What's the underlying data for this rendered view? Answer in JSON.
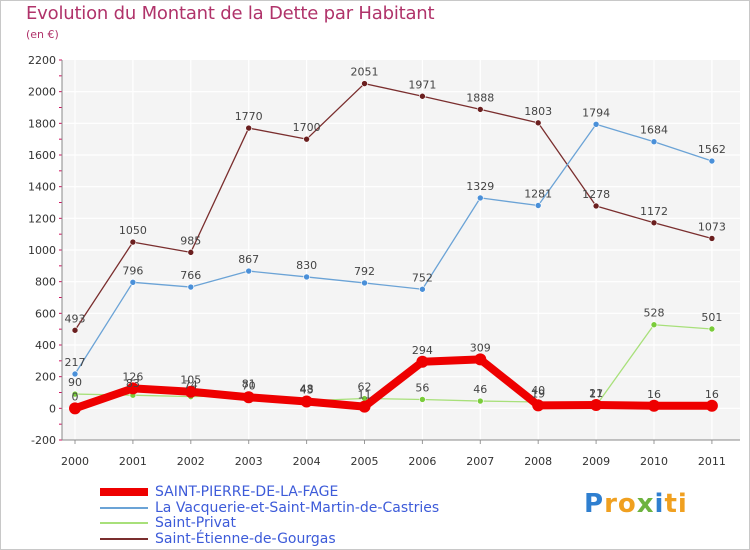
{
  "chart_data": {
    "type": "line",
    "title": "Evolution du Montant de la Dette par Habitant",
    "subtitle": "(en €)",
    "categories": [
      "2000",
      "2001",
      "2002",
      "2003",
      "2004",
      "2005",
      "2006",
      "2007",
      "2008",
      "2009",
      "2010",
      "2011"
    ],
    "ylim": [
      -200,
      2200
    ],
    "yticks": [
      -200,
      0,
      200,
      400,
      600,
      800,
      1000,
      1200,
      1400,
      1600,
      1800,
      2000,
      2200
    ],
    "series": [
      {
        "name": "SAINT-PIERRE-DE-LA-FAGE",
        "color": "#ee0000",
        "values": [
          0,
          126,
          105,
          70,
          43,
          11,
          294,
          309,
          19,
          21,
          16,
          16
        ],
        "labels": [
          "0",
          "126",
          "105",
          "70",
          "43",
          "11",
          "294",
          "309",
          "19",
          "21",
          "16",
          "16"
        ]
      },
      {
        "name": "La Vacquerie-et-Saint-Martin-de-Castries",
        "color": "#6ba3d6",
        "values": [
          217,
          796,
          766,
          867,
          830,
          792,
          752,
          1329,
          1281,
          1794,
          1684,
          1562
        ],
        "labels": [
          "217",
          "796",
          "766",
          "867",
          "830",
          "792",
          "752",
          "1329",
          "1281",
          "1794",
          "1684",
          "1562"
        ]
      },
      {
        "name": "Saint-Privat",
        "color": "#a8e07a",
        "values": [
          90,
          83,
          74,
          81,
          48,
          62,
          56,
          46,
          40,
          17,
          528,
          501
        ],
        "labels": [
          "90",
          "83",
          "74",
          "81",
          "48",
          "62",
          "56",
          "46",
          "40",
          "17",
          "528",
          "501"
        ]
      },
      {
        "name": "Saint-Étienne-de-Gourgas",
        "color": "#7a2e2e",
        "values": [
          493,
          1050,
          985,
          1770,
          1700,
          2051,
          1971,
          1888,
          1803,
          1278,
          1172,
          1073
        ],
        "labels": [
          "493",
          "1050",
          "985",
          "1770",
          "1700",
          "2051",
          "1971",
          "1888",
          "1803",
          "1278",
          "1172",
          "1073"
        ]
      }
    ]
  },
  "logo": {
    "p": "P",
    "ro": "ro",
    "x": "x",
    "i": "i",
    "ti": "ti"
  }
}
